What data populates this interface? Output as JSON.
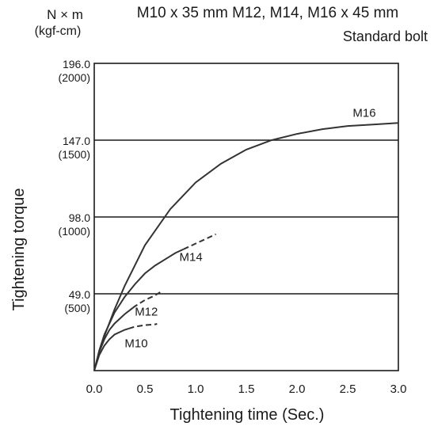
{
  "chart_data": {
    "type": "line",
    "title": "M10 x 35 mm M12, M14, M16 x 45 mm",
    "subtitle": "Standard bolt",
    "unit_top": "N × m",
    "unit_bottom": "(kgf-cm)",
    "xlabel": "Tightening time (Sec.)",
    "ylabel": "Tightening torque",
    "xlim": [
      0,
      3.0
    ],
    "ylim": [
      0,
      196.0
    ],
    "x_ticks": [
      "0.0",
      "0.5",
      "1.0",
      "1.5",
      "2.0",
      "2.5",
      "3.0"
    ],
    "y_ticks": [
      {
        "value": 196.0,
        "label": "196.0",
        "sublabel": "(2000)"
      },
      {
        "value": 147.0,
        "label": "147.0",
        "sublabel": "(1500)"
      },
      {
        "value": 98.0,
        "label": "98.0",
        "sublabel": "(1000)"
      },
      {
        "value": 49.0,
        "label": "49.0",
        "sublabel": "(500)"
      }
    ],
    "grid_lines_y": [
      49.0,
      98.0,
      147.0
    ],
    "series": [
      {
        "name": "M16",
        "x": [
          0,
          0.05,
          0.1,
          0.2,
          0.3,
          0.5,
          0.75,
          1.0,
          1.25,
          1.5,
          1.75,
          2.0,
          2.25,
          2.5,
          2.75,
          3.0
        ],
        "y": [
          0,
          12,
          22,
          39,
          54,
          80,
          103,
          120,
          132,
          141,
          147,
          151,
          154,
          156,
          157,
          158
        ],
        "dashed_from": null
      },
      {
        "name": "M14",
        "x": [
          0,
          0.05,
          0.1,
          0.2,
          0.3,
          0.4,
          0.5,
          0.6,
          0.7,
          0.8,
          0.9,
          1.0,
          1.1,
          1.2
        ],
        "y": [
          0,
          13,
          23,
          37,
          47,
          55,
          62,
          67,
          71,
          75,
          78,
          81,
          84,
          87
        ],
        "dashed_from": 0.88
      },
      {
        "name": "M12",
        "x": [
          0,
          0.05,
          0.1,
          0.15,
          0.2,
          0.3,
          0.4,
          0.5,
          0.6,
          0.65
        ],
        "y": [
          0,
          12,
          20,
          26,
          30,
          36,
          41,
          45,
          48,
          50
        ],
        "dashed_from": 0.38
      },
      {
        "name": "M10",
        "x": [
          0,
          0.05,
          0.1,
          0.15,
          0.2,
          0.3,
          0.4,
          0.5,
          0.6,
          0.62
        ],
        "y": [
          0,
          10,
          16,
          20,
          23,
          26,
          28,
          29,
          29.5,
          29.8
        ],
        "dashed_from": 0.34
      }
    ],
    "annotations": [
      "M16",
      "M14",
      "M12",
      "M10"
    ],
    "legend": "none",
    "grid": true
  }
}
